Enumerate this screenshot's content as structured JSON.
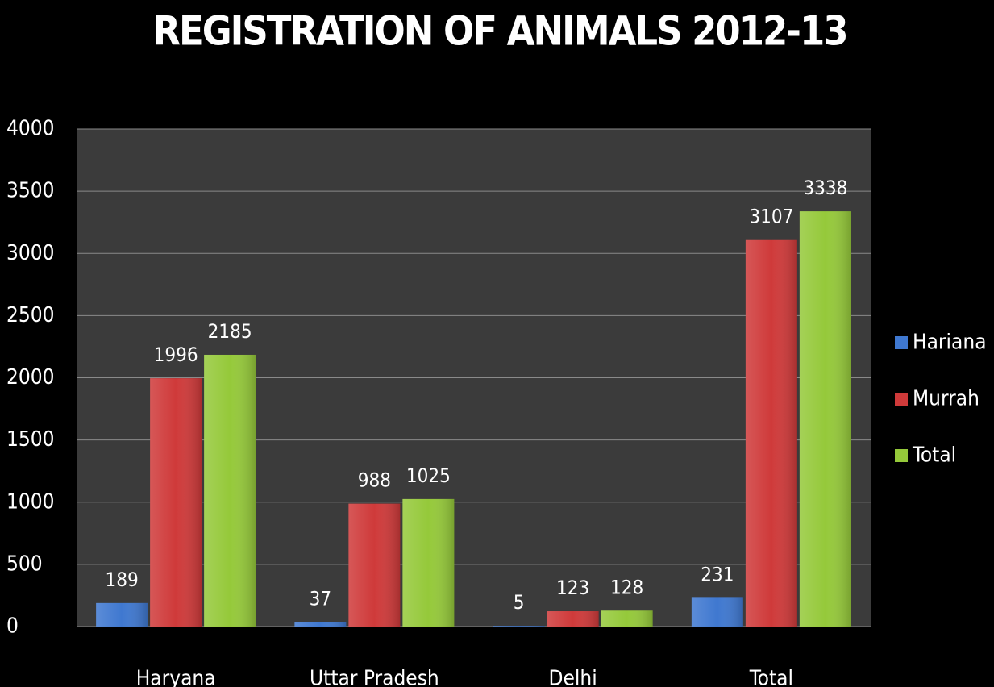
{
  "chart_data": {
    "type": "bar",
    "title": "REGISTRATION OF ANIMALS 2012-13",
    "categories": [
      "Haryana",
      "Uttar Pradesh",
      "Delhi",
      "Total"
    ],
    "series": [
      {
        "name": "Hariana",
        "color": "#3f78d0",
        "values": [
          189,
          37,
          5,
          231
        ]
      },
      {
        "name": "Murrah",
        "color": "#cf3a3a",
        "values": [
          1996,
          988,
          123,
          3107
        ]
      },
      {
        "name": "Total",
        "color": "#95c93a",
        "values": [
          2185,
          1025,
          128,
          3338
        ]
      }
    ],
    "ylim": [
      0,
      4000
    ],
    "yticks": [
      0,
      500,
      1000,
      1500,
      2000,
      2500,
      3000,
      3500,
      4000
    ],
    "grid": true,
    "legend": "right"
  }
}
